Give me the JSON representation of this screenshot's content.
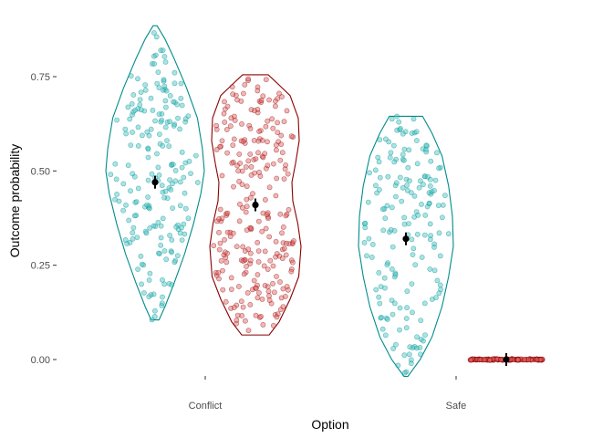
{
  "chart_data": {
    "type": "violin-jitter",
    "xlabel": "Option",
    "ylabel": "Outcome probability",
    "categories": [
      "Conflict",
      "Safe"
    ],
    "ylim": [
      -0.08,
      0.9
    ],
    "yticks": [
      {
        "value": 0.0,
        "label": "0.00"
      },
      {
        "value": 0.25,
        "label": "0.25"
      },
      {
        "value": 0.5,
        "label": "0.50"
      },
      {
        "value": 0.75,
        "label": "0.75"
      }
    ],
    "grid": false,
    "legend": "none",
    "colors": {
      "teal": "#008B8B",
      "darkred": "#8B0000",
      "teal_fill": "#40C0C0",
      "red_fill": "#E06060"
    },
    "groups": [
      {
        "category": "Conflict",
        "side": "left",
        "color": "teal",
        "mean": 0.47,
        "min": 0.105,
        "max": 0.885,
        "point_count": 200,
        "density": [
          [
            0.105,
            0.08
          ],
          [
            0.14,
            0.2
          ],
          [
            0.2,
            0.38
          ],
          [
            0.28,
            0.6
          ],
          [
            0.36,
            0.78
          ],
          [
            0.44,
            0.93
          ],
          [
            0.5,
            1.0
          ],
          [
            0.56,
            0.96
          ],
          [
            0.64,
            0.86
          ],
          [
            0.72,
            0.64
          ],
          [
            0.8,
            0.38
          ],
          [
            0.85,
            0.2
          ],
          [
            0.885,
            0.04
          ]
        ]
      },
      {
        "category": "Conflict",
        "side": "right",
        "color": "darkred",
        "mean": 0.41,
        "min": 0.065,
        "max": 0.755,
        "point_count": 260,
        "density": [
          [
            0.065,
            0.3
          ],
          [
            0.1,
            0.52
          ],
          [
            0.16,
            0.76
          ],
          [
            0.22,
            0.95
          ],
          [
            0.3,
            1.0
          ],
          [
            0.36,
            0.93
          ],
          [
            0.42,
            0.82
          ],
          [
            0.47,
            0.8
          ],
          [
            0.52,
            0.88
          ],
          [
            0.58,
            0.96
          ],
          [
            0.64,
            0.94
          ],
          [
            0.7,
            0.76
          ],
          [
            0.73,
            0.5
          ],
          [
            0.755,
            0.28
          ]
        ]
      },
      {
        "category": "Safe",
        "side": "left",
        "color": "teal",
        "mean": 0.32,
        "min": -0.045,
        "max": 0.645,
        "point_count": 180,
        "density": [
          [
            -0.045,
            0.04
          ],
          [
            0.0,
            0.3
          ],
          [
            0.06,
            0.55
          ],
          [
            0.14,
            0.76
          ],
          [
            0.22,
            0.9
          ],
          [
            0.3,
            1.0
          ],
          [
            0.38,
            0.98
          ],
          [
            0.46,
            0.9
          ],
          [
            0.54,
            0.76
          ],
          [
            0.6,
            0.55
          ],
          [
            0.645,
            0.35
          ]
        ]
      },
      {
        "category": "Safe",
        "side": "right",
        "color": "darkred",
        "mean": 0.0,
        "min": 0.0,
        "max": 0.0,
        "point_count": 120,
        "density": []
      }
    ]
  }
}
